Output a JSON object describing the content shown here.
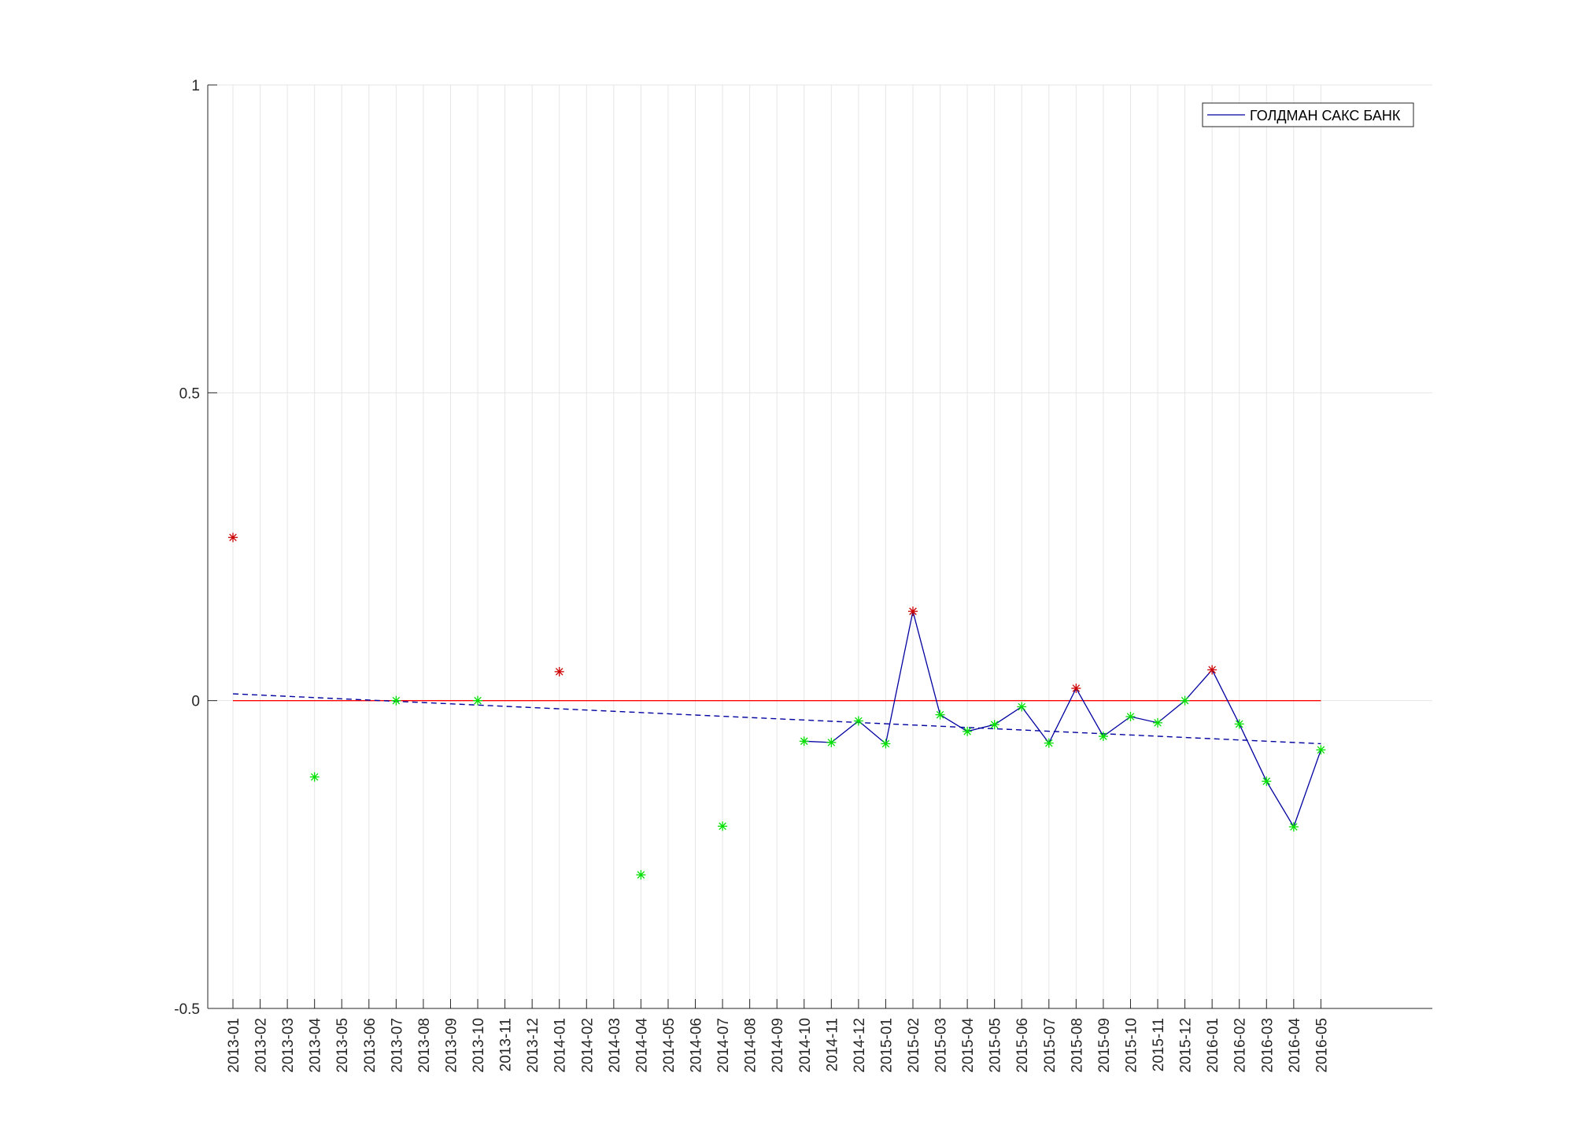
{
  "chart_data": {
    "type": "line",
    "title": "",
    "xlabel": "",
    "ylabel": "",
    "ylim": [
      -0.5,
      1
    ],
    "yticks": [
      -0.5,
      0,
      0.5,
      1
    ],
    "ytick_labels": [
      "-0.5",
      "0",
      "0.5",
      "1"
    ],
    "grid": true,
    "legend_position": "top-right",
    "categories": [
      "2013-01",
      "2013-02",
      "2013-03",
      "2013-04",
      "2013-05",
      "2013-06",
      "2013-07",
      "2013-08",
      "2013-09",
      "2013-10",
      "2013-11",
      "2013-12",
      "2014-01",
      "2014-02",
      "2014-03",
      "2014-04",
      "2014-05",
      "2014-06",
      "2014-07",
      "2014-08",
      "2014-09",
      "2014-10",
      "2014-11",
      "2014-12",
      "2015-01",
      "2015-02",
      "2015-03",
      "2015-04",
      "2015-05",
      "2015-06",
      "2015-07",
      "2015-08",
      "2015-09",
      "2015-10",
      "2015-11",
      "2015-12",
      "2016-01",
      "2016-02",
      "2016-03",
      "2016-04",
      "2016-05"
    ],
    "series": [
      {
        "name": "ГОЛДМАН САКС БАНК",
        "color": "#0000a0",
        "style": "solid",
        "points": [
          {
            "x": "2014-10",
            "y": -0.066
          },
          {
            "x": "2014-11",
            "y": -0.068
          },
          {
            "x": "2014-12",
            "y": -0.033
          },
          {
            "x": "2015-01",
            "y": -0.07
          },
          {
            "x": "2015-02",
            "y": 0.145
          },
          {
            "x": "2015-03",
            "y": -0.023
          },
          {
            "x": "2015-04",
            "y": -0.05
          },
          {
            "x": "2015-05",
            "y": -0.039
          },
          {
            "x": "2015-06",
            "y": -0.01
          },
          {
            "x": "2015-07",
            "y": -0.069
          },
          {
            "x": "2015-08",
            "y": 0.02
          },
          {
            "x": "2015-09",
            "y": -0.058
          },
          {
            "x": "2015-10",
            "y": -0.026
          },
          {
            "x": "2015-11",
            "y": -0.036
          },
          {
            "x": "2015-12",
            "y": 0.0
          },
          {
            "x": "2016-01",
            "y": 0.05
          },
          {
            "x": "2016-02",
            "y": -0.038
          },
          {
            "x": "2016-03",
            "y": -0.131
          },
          {
            "x": "2016-04",
            "y": -0.205
          },
          {
            "x": "2016-05",
            "y": -0.08
          }
        ]
      }
    ],
    "markers": [
      {
        "x": "2013-01",
        "y": 0.265,
        "color": "#cc0000"
      },
      {
        "x": "2013-04",
        "y": -0.124,
        "color": "#00e000"
      },
      {
        "x": "2013-07",
        "y": 0.0,
        "color": "#00e000"
      },
      {
        "x": "2013-10",
        "y": 0.0,
        "color": "#00e000"
      },
      {
        "x": "2014-01",
        "y": 0.047,
        "color": "#cc0000"
      },
      {
        "x": "2014-04",
        "y": -0.283,
        "color": "#00e000"
      },
      {
        "x": "2014-07",
        "y": -0.204,
        "color": "#00e000"
      },
      {
        "x": "2014-10",
        "y": -0.066,
        "color": "#00e000"
      },
      {
        "x": "2014-11",
        "y": -0.068,
        "color": "#00e000"
      },
      {
        "x": "2014-12",
        "y": -0.033,
        "color": "#00e000"
      },
      {
        "x": "2015-01",
        "y": -0.07,
        "color": "#00e000"
      },
      {
        "x": "2015-02",
        "y": 0.145,
        "color": "#cc0000"
      },
      {
        "x": "2015-03",
        "y": -0.023,
        "color": "#00e000"
      },
      {
        "x": "2015-04",
        "y": -0.05,
        "color": "#00e000"
      },
      {
        "x": "2015-05",
        "y": -0.039,
        "color": "#00e000"
      },
      {
        "x": "2015-06",
        "y": -0.01,
        "color": "#00e000"
      },
      {
        "x": "2015-07",
        "y": -0.069,
        "color": "#00e000"
      },
      {
        "x": "2015-08",
        "y": 0.02,
        "color": "#cc0000"
      },
      {
        "x": "2015-09",
        "y": -0.058,
        "color": "#00e000"
      },
      {
        "x": "2015-10",
        "y": -0.026,
        "color": "#00e000"
      },
      {
        "x": "2015-11",
        "y": -0.036,
        "color": "#00e000"
      },
      {
        "x": "2015-12",
        "y": 0.0,
        "color": "#00e000"
      },
      {
        "x": "2016-01",
        "y": 0.05,
        "color": "#cc0000"
      },
      {
        "x": "2016-02",
        "y": -0.038,
        "color": "#00e000"
      },
      {
        "x": "2016-03",
        "y": -0.131,
        "color": "#00e000"
      },
      {
        "x": "2016-04",
        "y": -0.205,
        "color": "#00e000"
      },
      {
        "x": "2016-05",
        "y": -0.08,
        "color": "#00e000"
      }
    ],
    "reference_line": {
      "y": 0,
      "color": "#ff0000",
      "from": "2013-01",
      "to": "2016-05"
    },
    "trend_line": {
      "from": {
        "x": "2013-01",
        "y": 0.011
      },
      "to": {
        "x": "2016-05",
        "y": -0.07
      },
      "color": "#0000a0",
      "style": "dashed"
    }
  }
}
